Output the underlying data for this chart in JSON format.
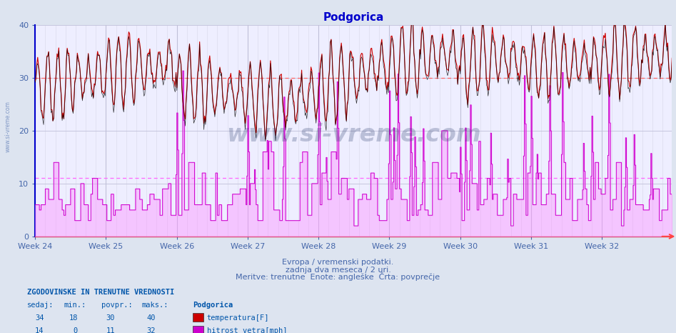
{
  "title": "Podgorica",
  "title_color": "#0000cc",
  "bg_color": "#dde4f0",
  "plot_bg_color": "#eeeeff",
  "grid_color": "#c0c0d8",
  "grid_minor_color": "#d8d8e8",
  "xlabel_line1": "Evropa / vremenski podatki.",
  "xlabel_line2": "zadnja dva meseca / 2 uri.",
  "xlabel_line3": "Meritve: trenutne  Enote: angleške  Črta: povprečje",
  "xlabel_color": "#4466aa",
  "week_labels": [
    "Week 24",
    "Week 25",
    "Week 26",
    "Week 27",
    "Week 28",
    "Week 29",
    "Week 30",
    "Week 31",
    "Week 32"
  ],
  "week_positions": [
    0,
    84,
    168,
    252,
    336,
    420,
    504,
    588,
    672
  ],
  "ylim": [
    0,
    40
  ],
  "yticks": [
    0,
    10,
    20,
    30,
    40
  ],
  "avg_temp": 30,
  "avg_wind": 11,
  "avg_temp_color": "#ff6666",
  "avg_wind_color": "#ff66ff",
  "temp_color": "#cc0000",
  "wind_color": "#cc00cc",
  "wind_fill_color": "#ff88ff",
  "black_color": "#000000",
  "n_points": 756,
  "watermark": "www.si-vreme.com",
  "watermark_color": "#223366",
  "watermark_alpha": 0.25,
  "footer_title": "ZGODOVINSKE IN TRENUTNE VREDNOSTI",
  "footer_color": "#0055aa",
  "footer_headers": [
    "sedaj:",
    "min.:",
    "povpr.:",
    "maks.:"
  ],
  "footer_vals_temp": [
    34,
    18,
    30,
    40
  ],
  "footer_vals_wind": [
    14,
    0,
    11,
    32
  ],
  "footer_label_temp": "temperatura[F]",
  "footer_label_wind": "hitrost vetra[mph]",
  "footer_swatch_temp": "#cc0000",
  "footer_swatch_wind": "#cc00cc",
  "arrow_color": "#ff4444",
  "spine_left_color": "#0000cc",
  "spine_bottom_color": "#cc2222"
}
